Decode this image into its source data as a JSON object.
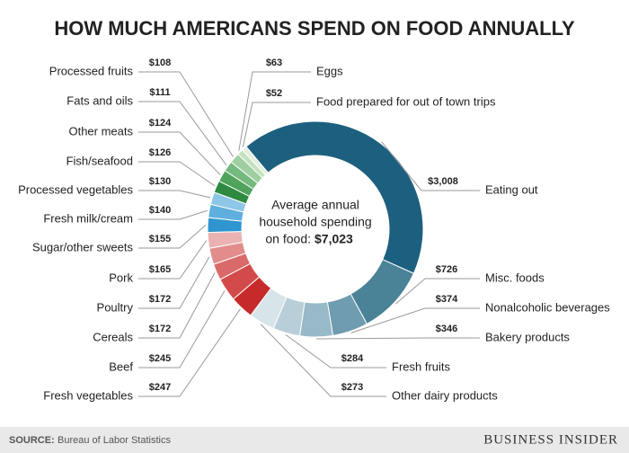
{
  "chart_data": {
    "type": "donut",
    "title": "HOW MUCH AMERICANS SPEND ON FOOD ANNUALLY",
    "categories": [
      "Eating out",
      "Misc. foods",
      "Nonalcoholic beverages",
      "Bakery products",
      "Fresh fruits",
      "Other dairy products",
      "Fresh vegetables",
      "Beef",
      "Cereals",
      "Poultry",
      "Pork",
      "Sugar/other sweets",
      "Fresh milk/cream",
      "Processed vegetables",
      "Fish/seafood",
      "Other meats",
      "Fats and oils",
      "Processed fruits",
      "Eggs",
      "Food prepared for out of town trips"
    ],
    "values": [
      3008,
      726,
      374,
      346,
      284,
      273,
      247,
      245,
      172,
      172,
      165,
      155,
      140,
      130,
      126,
      124,
      111,
      108,
      63,
      52
    ],
    "value_labels": [
      "$3,008",
      "$726",
      "$374",
      "$346",
      "$284",
      "$273",
      "$247",
      "$245",
      "$172",
      "$172",
      "$165",
      "$155",
      "$140",
      "$130",
      "$126",
      "$124",
      "$111",
      "$108",
      "$63",
      "$52"
    ],
    "colors": [
      "#1d5f7e",
      "#4a8297",
      "#6f9cb0",
      "#98b9c7",
      "#b8cfd9",
      "#d7e4ea",
      "#c62a2a",
      "#d24a4a",
      "#da6a6a",
      "#e28c8c",
      "#ebb2b2",
      "#2f95cf",
      "#5eafdd",
      "#8dc7e8",
      "#2e8a3f",
      "#4fa35b",
      "#76b97e",
      "#9fcea0",
      "#c5e2c0",
      "#e2efdf"
    ],
    "center_lines": [
      "Average annual",
      "household spending"
    ],
    "center_prefix": "on food:",
    "center_value": "$7,023",
    "source_label": "SOURCE:",
    "source": "Bureau of Labor Statistics",
    "brand": "BUSINESS INSIDER"
  }
}
